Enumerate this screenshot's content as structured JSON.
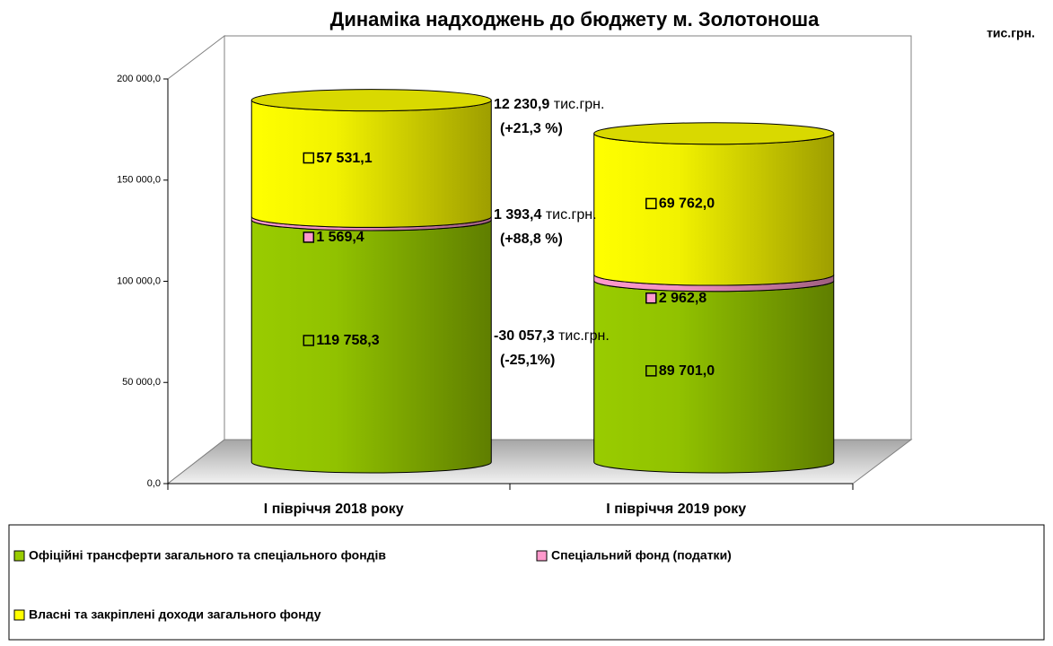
{
  "chart_data": {
    "type": "bar",
    "stacked": true,
    "title": "Динаміка надходжень до бюджету м. Золотоноша",
    "unit": "тис.грн.",
    "categories": [
      "І півріччя 2018 року",
      "І півріччя 2019 року"
    ],
    "series": [
      {
        "name": "Офіційні трансферти загального та спеціального фондів",
        "color": "#99cc00",
        "values": [
          119758.3,
          89701.0
        ],
        "value_labels": [
          "119 758,3",
          "89 701,0"
        ]
      },
      {
        "name": "Спеціальний фонд (податки)",
        "color": "#ff99cc",
        "values": [
          1569.4,
          2962.8
        ],
        "value_labels": [
          "1 569,4",
          "2 962,8"
        ]
      },
      {
        "name": "Власні та закріплені доходи загального фонду",
        "color": "#ffff00",
        "values": [
          57531.1,
          69762.0
        ],
        "value_labels": [
          "57 531,1",
          "69 762,0"
        ]
      }
    ],
    "ylim": [
      0,
      200000
    ],
    "yticks": [
      {
        "value": 0,
        "label": "0,0"
      },
      {
        "value": 50000,
        "label": "50 000,0"
      },
      {
        "value": 100000,
        "label": "100 000,0"
      },
      {
        "value": 150000,
        "label": "150 000,0"
      },
      {
        "value": 200000,
        "label": "200 000,0"
      }
    ],
    "grid": false,
    "annotations": [
      {
        "amount": "-30 057,3",
        "unit": "тис.грн.",
        "change": "(-25,1%)"
      },
      {
        "amount": "1 393,4",
        "unit": "тис.грн.",
        "change": "(+88,8 %)"
      },
      {
        "amount": "12 230,9",
        "unit": "тис.грн.",
        "change": "(+21,3 %)"
      }
    ],
    "legend": "bottom"
  }
}
